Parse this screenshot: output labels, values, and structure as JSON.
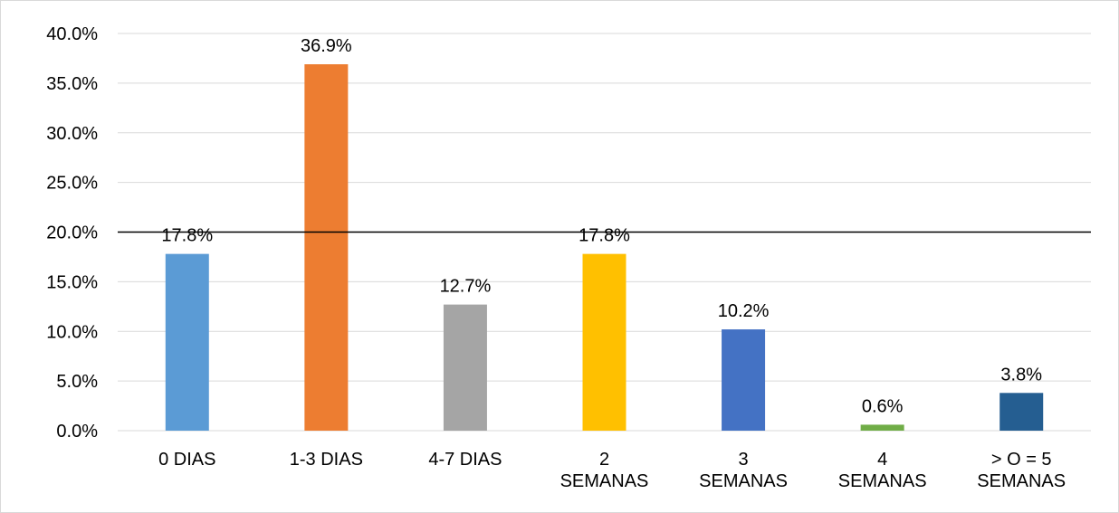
{
  "chart_data": {
    "type": "bar",
    "categories": [
      "0 DIAS",
      "1-3 DIAS",
      "4-7 DIAS",
      "2 SEMANAS",
      "3 SEMANAS",
      "4 SEMANAS",
      "> O = 5 SEMANAS"
    ],
    "values": [
      17.8,
      36.9,
      12.7,
      17.8,
      10.2,
      0.6,
      3.8
    ],
    "value_labels": [
      "17.8%",
      "36.9%",
      "12.7%",
      "17.8%",
      "10.2%",
      "0.6%",
      "3.8%"
    ],
    "colors": [
      "#5b9bd5",
      "#ed7d31",
      "#a5a5a5",
      "#ffc000",
      "#4472c4",
      "#70ad47",
      "#255e91"
    ],
    "ylim": [
      0,
      40
    ],
    "yticks": [
      {
        "value": 0,
        "label": "0.0%"
      },
      {
        "value": 5,
        "label": "5.0%"
      },
      {
        "value": 10,
        "label": "10.0%"
      },
      {
        "value": 15,
        "label": "15.0%"
      },
      {
        "value": 20,
        "label": "20.0%"
      },
      {
        "value": 25,
        "label": "25.0%"
      },
      {
        "value": 30,
        "label": "30.0%"
      },
      {
        "value": 35,
        "label": "35.0%"
      },
      {
        "value": 40,
        "label": "40.0%"
      }
    ],
    "grid": true,
    "reference_line": {
      "value": 20,
      "color": "#000000"
    }
  }
}
